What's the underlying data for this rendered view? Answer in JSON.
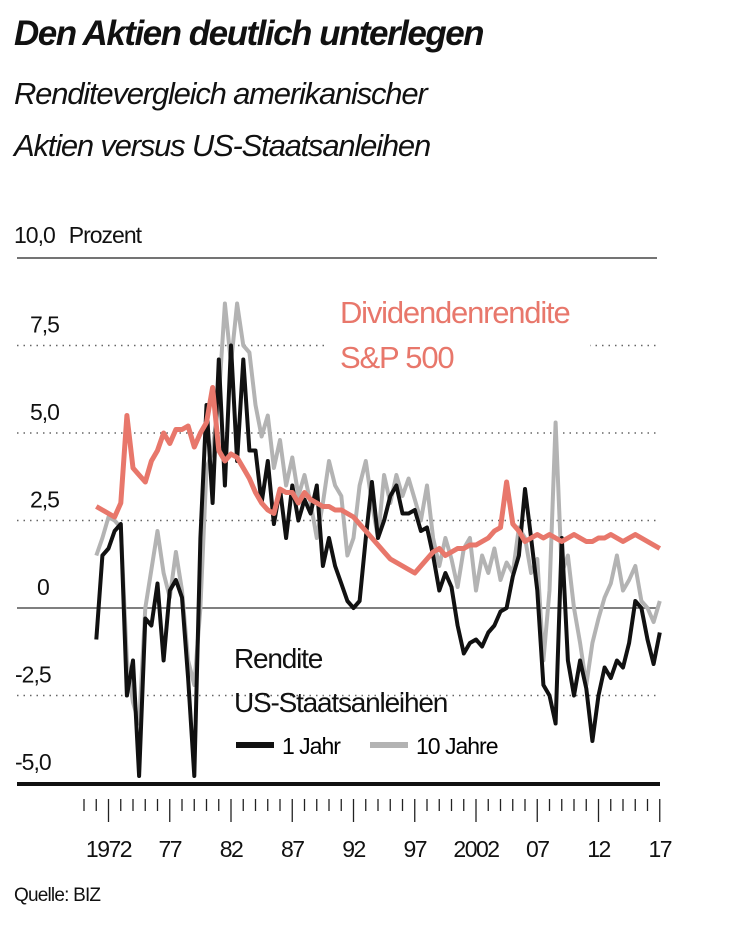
{
  "title": "Den Aktien deutlich unterlegen",
  "subtitle_lines": [
    "Renditevergleich amerikanischer",
    "Aktien versus US-Staatsanleihen"
  ],
  "source": "Quelle: BIZ",
  "colors": {
    "dividend": "#e8776b",
    "one_year": "#111111",
    "ten_year": "#b3b3b3"
  },
  "chart_data": {
    "type": "line",
    "unit_label": "Prozent",
    "ylim": [
      -5.0,
      10.0
    ],
    "y_ticks": [
      10.0,
      7.5,
      5.0,
      2.5,
      0,
      -2.5,
      -5.0
    ],
    "y_tick_labels": [
      "10,0",
      "7,5",
      "5,0",
      "2,5",
      "0",
      "-2,5",
      "-5,0"
    ],
    "xlim": [
      1970,
      2017
    ],
    "x_ticks": [
      1972,
      1977,
      1982,
      1987,
      1992,
      1997,
      2002,
      2007,
      2012,
      2017
    ],
    "x_tick_labels": [
      "1972",
      "77",
      "82",
      "87",
      "92",
      "97",
      "2002",
      "07",
      "12",
      "17"
    ],
    "grid": "horizontal dotted",
    "annotations": {
      "dividend_label": [
        "Dividendenrendite",
        "S&P 500"
      ],
      "bond_label": [
        "Rendite",
        "US-Staatsanleihen"
      ]
    },
    "legend": {
      "placement": "bottom-center",
      "items": [
        "1 Jahr",
        "10 Jahre"
      ]
    },
    "x": [
      1971,
      1971.5,
      1972,
      1972.5,
      1973,
      1973.5,
      1974,
      1974.5,
      1975,
      1975.5,
      1976,
      1976.5,
      1977,
      1977.5,
      1978,
      1978.5,
      1979,
      1979.5,
      1980,
      1980.5,
      1981,
      1981.5,
      1982,
      1982.5,
      1983,
      1983.5,
      1984,
      1984.5,
      1985,
      1985.5,
      1986,
      1986.5,
      1987,
      1987.5,
      1988,
      1988.5,
      1989,
      1989.5,
      1990,
      1990.5,
      1991,
      1991.5,
      1992,
      1992.5,
      1993,
      1993.5,
      1994,
      1994.5,
      1995,
      1995.5,
      1996,
      1996.5,
      1997,
      1997.5,
      1998,
      1998.5,
      1999,
      1999.5,
      2000,
      2000.5,
      2001,
      2001.5,
      2002,
      2002.5,
      2003,
      2003.5,
      2004,
      2004.5,
      2005,
      2005.5,
      2006,
      2006.5,
      2007,
      2007.5,
      2008,
      2008.5,
      2009,
      2009.5,
      2010,
      2010.5,
      2011,
      2011.5,
      2012,
      2012.5,
      2013,
      2013.5,
      2014,
      2014.5,
      2015,
      2015.5,
      2016,
      2016.5,
      2017
    ],
    "series": [
      {
        "name": "Dividendenrendite S&P 500",
        "key": "dividend",
        "values": [
          2.9,
          2.8,
          2.7,
          2.6,
          3.0,
          5.5,
          4.0,
          3.8,
          3.6,
          4.2,
          4.5,
          5.0,
          4.7,
          5.1,
          5.1,
          5.2,
          4.6,
          5.0,
          5.3,
          6.3,
          4.5,
          4.2,
          4.4,
          4.3,
          4.0,
          3.7,
          3.3,
          3.0,
          2.8,
          2.7,
          3.4,
          3.3,
          3.3,
          3.0,
          3.3,
          3.1,
          3.0,
          2.9,
          2.9,
          2.8,
          2.8,
          2.7,
          2.6,
          2.4,
          2.2,
          2.0,
          1.8,
          1.6,
          1.4,
          1.3,
          1.2,
          1.1,
          1.0,
          1.2,
          1.4,
          1.6,
          1.7,
          1.5,
          1.6,
          1.7,
          1.7,
          1.8,
          1.8,
          1.9,
          2.0,
          2.2,
          2.3,
          3.6,
          2.4,
          2.2,
          1.9,
          2.0,
          2.1,
          2.0,
          2.1,
          2.0,
          1.9,
          2.0,
          2.1,
          2.0,
          1.9,
          1.9,
          2.0,
          2.0,
          2.1,
          2.0,
          1.9,
          2.0,
          2.1,
          2.0,
          1.9,
          1.8,
          1.7
        ]
      },
      {
        "name": "1 Jahr",
        "key": "one_year",
        "values": [
          -0.9,
          1.5,
          1.7,
          2.2,
          2.4,
          -2.5,
          -1.5,
          -4.8,
          -0.3,
          -0.5,
          0.7,
          -1.5,
          0.5,
          0.8,
          0.3,
          -2.0,
          -4.8,
          2.0,
          5.8,
          3.0,
          7.1,
          3.5,
          7.5,
          4.2,
          7.1,
          4.5,
          4.5,
          3.0,
          4.2,
          2.4,
          3.4,
          2.0,
          3.5,
          2.5,
          3.1,
          2.7,
          3.5,
          1.2,
          2.0,
          1.2,
          0.7,
          0.2,
          0.0,
          0.2,
          2.0,
          3.6,
          2.0,
          2.5,
          3.2,
          3.5,
          2.7,
          2.7,
          2.8,
          2.2,
          2.3,
          1.5,
          0.5,
          1.0,
          0.6,
          -0.5,
          -1.3,
          -1.0,
          -0.9,
          -1.1,
          -0.7,
          -0.5,
          -0.1,
          0.0,
          0.9,
          1.5,
          3.4,
          2.0,
          0.5,
          -2.2,
          -2.5,
          -3.3,
          2.0,
          -1.5,
          -2.5,
          -1.5,
          -2.3,
          -3.8,
          -2.5,
          -1.7,
          -2.0,
          -1.5,
          -1.7,
          -1.0,
          0.2,
          0.0,
          -0.9,
          -1.6,
          -0.7
        ]
      },
      {
        "name": "10 Jahre",
        "key": "ten_year",
        "values": [
          1.5,
          2.0,
          2.6,
          2.5,
          2.3,
          -1.5,
          -2.7,
          -3.3,
          0.0,
          1.1,
          2.2,
          1.0,
          0.3,
          1.6,
          0.5,
          -1.5,
          -2.2,
          0.0,
          4.0,
          4.5,
          6.0,
          8.7,
          7.0,
          8.7,
          7.5,
          7.3,
          5.8,
          4.9,
          5.5,
          4.0,
          4.8,
          3.5,
          4.3,
          3.2,
          3.8,
          3.0,
          2.0,
          3.0,
          4.2,
          3.5,
          3.2,
          1.5,
          2.0,
          3.5,
          4.2,
          3.0,
          2.0,
          3.8,
          3.0,
          3.8,
          3.2,
          3.7,
          3.1,
          2.5,
          3.5,
          2.0,
          1.2,
          2.0,
          1.4,
          0.6,
          1.7,
          2.0,
          0.5,
          1.5,
          1.0,
          1.7,
          0.8,
          1.3,
          1.0,
          2.3,
          2.0,
          1.0,
          1.4,
          -1.5,
          0.5,
          5.3,
          1.0,
          1.5,
          0.0,
          -1.0,
          -2.2,
          -1.0,
          -0.3,
          0.3,
          0.7,
          1.5,
          0.5,
          0.8,
          1.2,
          0.2,
          0.0,
          -0.4,
          0.2
        ]
      }
    ]
  }
}
